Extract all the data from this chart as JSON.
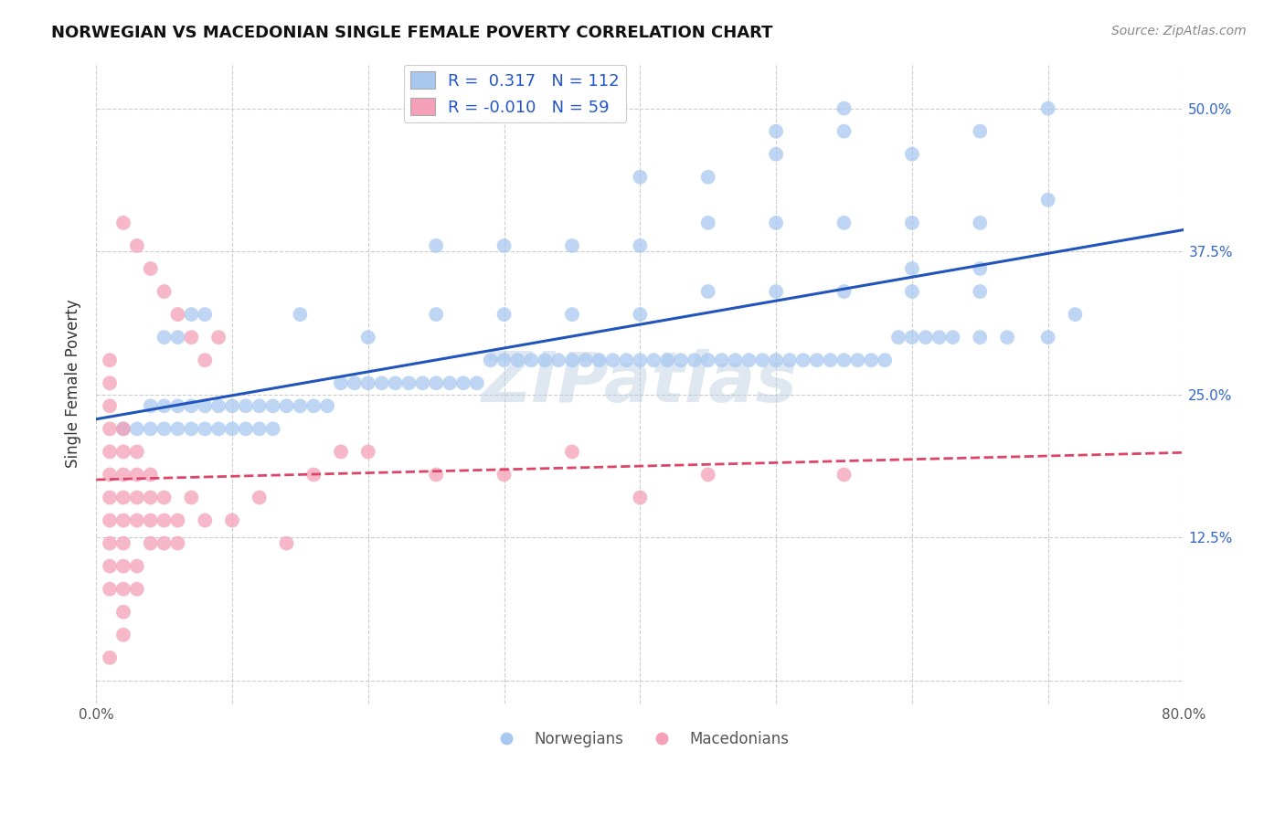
{
  "title": "NORWEGIAN VS MACEDONIAN SINGLE FEMALE POVERTY CORRELATION CHART",
  "source": "Source: ZipAtlas.com",
  "ylabel": "Single Female Poverty",
  "xlim": [
    0.0,
    0.8
  ],
  "ylim": [
    -0.02,
    0.54
  ],
  "xticks": [
    0.0,
    0.1,
    0.2,
    0.3,
    0.4,
    0.5,
    0.6,
    0.7,
    0.8
  ],
  "xticklabels": [
    "0.0%",
    "",
    "",
    "",
    "",
    "",
    "",
    "",
    "80.0%"
  ],
  "yticks": [
    0.0,
    0.125,
    0.25,
    0.375,
    0.5
  ],
  "yticklabels": [
    "",
    "12.5%",
    "25.0%",
    "37.5%",
    "50.0%"
  ],
  "watermark": "ZIPatlas",
  "legend_norwegian_r": "0.317",
  "legend_norwegian_n": "112",
  "legend_macedonian_r": "-0.010",
  "legend_macedonian_n": "59",
  "norwegian_color": "#a8c8f0",
  "macedonian_color": "#f4a0b8",
  "norwegian_line_color": "#2255bb",
  "macedonian_line_color": "#dd4466",
  "grid_color": "#cccccc",
  "background_color": "#ffffff",
  "norwegian_x": [
    0.02,
    0.03,
    0.04,
    0.04,
    0.05,
    0.05,
    0.06,
    0.06,
    0.07,
    0.07,
    0.08,
    0.08,
    0.09,
    0.09,
    0.1,
    0.1,
    0.11,
    0.11,
    0.12,
    0.12,
    0.13,
    0.13,
    0.14,
    0.15,
    0.16,
    0.17,
    0.18,
    0.19,
    0.2,
    0.21,
    0.22,
    0.23,
    0.24,
    0.25,
    0.26,
    0.27,
    0.28,
    0.29,
    0.3,
    0.31,
    0.32,
    0.33,
    0.34,
    0.35,
    0.36,
    0.37,
    0.38,
    0.39,
    0.4,
    0.41,
    0.42,
    0.43,
    0.44,
    0.45,
    0.46,
    0.47,
    0.48,
    0.49,
    0.5,
    0.51,
    0.52,
    0.53,
    0.54,
    0.55,
    0.56,
    0.57,
    0.58,
    0.59,
    0.6,
    0.61,
    0.62,
    0.63,
    0.65,
    0.67,
    0.7,
    0.72,
    0.05,
    0.06,
    0.07,
    0.08,
    0.15,
    0.2,
    0.25,
    0.3,
    0.35,
    0.4,
    0.45,
    0.5,
    0.55,
    0.6,
    0.65,
    0.25,
    0.3,
    0.35,
    0.4,
    0.45,
    0.5,
    0.55,
    0.6,
    0.65,
    0.7,
    0.4,
    0.45,
    0.5,
    0.55,
    0.6,
    0.65,
    0.7,
    0.5,
    0.55,
    0.6,
    0.65
  ],
  "norwegian_y": [
    0.22,
    0.22,
    0.22,
    0.24,
    0.22,
    0.24,
    0.22,
    0.24,
    0.22,
    0.24,
    0.22,
    0.24,
    0.22,
    0.24,
    0.22,
    0.24,
    0.22,
    0.24,
    0.22,
    0.24,
    0.22,
    0.24,
    0.24,
    0.24,
    0.24,
    0.24,
    0.26,
    0.26,
    0.26,
    0.26,
    0.26,
    0.26,
    0.26,
    0.26,
    0.26,
    0.26,
    0.26,
    0.28,
    0.28,
    0.28,
    0.28,
    0.28,
    0.28,
    0.28,
    0.28,
    0.28,
    0.28,
    0.28,
    0.28,
    0.28,
    0.28,
    0.28,
    0.28,
    0.28,
    0.28,
    0.28,
    0.28,
    0.28,
    0.28,
    0.28,
    0.28,
    0.28,
    0.28,
    0.28,
    0.28,
    0.28,
    0.28,
    0.3,
    0.3,
    0.3,
    0.3,
    0.3,
    0.3,
    0.3,
    0.3,
    0.32,
    0.3,
    0.3,
    0.32,
    0.32,
    0.32,
    0.3,
    0.32,
    0.32,
    0.32,
    0.32,
    0.34,
    0.34,
    0.34,
    0.36,
    0.36,
    0.38,
    0.38,
    0.38,
    0.38,
    0.4,
    0.4,
    0.4,
    0.4,
    0.4,
    0.42,
    0.44,
    0.44,
    0.46,
    0.48,
    0.46,
    0.48,
    0.5,
    0.48,
    0.5,
    0.34,
    0.34
  ],
  "macedonian_x": [
    0.01,
    0.01,
    0.01,
    0.01,
    0.01,
    0.01,
    0.01,
    0.01,
    0.01,
    0.01,
    0.01,
    0.02,
    0.02,
    0.02,
    0.02,
    0.02,
    0.02,
    0.02,
    0.02,
    0.02,
    0.02,
    0.03,
    0.03,
    0.03,
    0.03,
    0.03,
    0.03,
    0.04,
    0.04,
    0.04,
    0.04,
    0.05,
    0.05,
    0.05,
    0.06,
    0.06,
    0.07,
    0.08,
    0.09,
    0.1,
    0.12,
    0.14,
    0.16,
    0.18,
    0.2,
    0.25,
    0.3,
    0.35,
    0.4,
    0.45,
    0.55,
    0.02,
    0.03,
    0.04,
    0.05,
    0.06,
    0.07,
    0.08,
    0.01
  ],
  "macedonian_y": [
    0.2,
    0.22,
    0.24,
    0.18,
    0.16,
    0.14,
    0.12,
    0.26,
    0.28,
    0.1,
    0.08,
    0.2,
    0.22,
    0.18,
    0.16,
    0.14,
    0.12,
    0.1,
    0.08,
    0.06,
    0.04,
    0.2,
    0.18,
    0.16,
    0.14,
    0.1,
    0.08,
    0.18,
    0.16,
    0.14,
    0.12,
    0.16,
    0.14,
    0.12,
    0.14,
    0.12,
    0.16,
    0.14,
    0.3,
    0.14,
    0.16,
    0.12,
    0.18,
    0.2,
    0.2,
    0.18,
    0.18,
    0.2,
    0.16,
    0.18,
    0.18,
    0.4,
    0.38,
    0.36,
    0.34,
    0.32,
    0.3,
    0.28,
    0.02
  ]
}
